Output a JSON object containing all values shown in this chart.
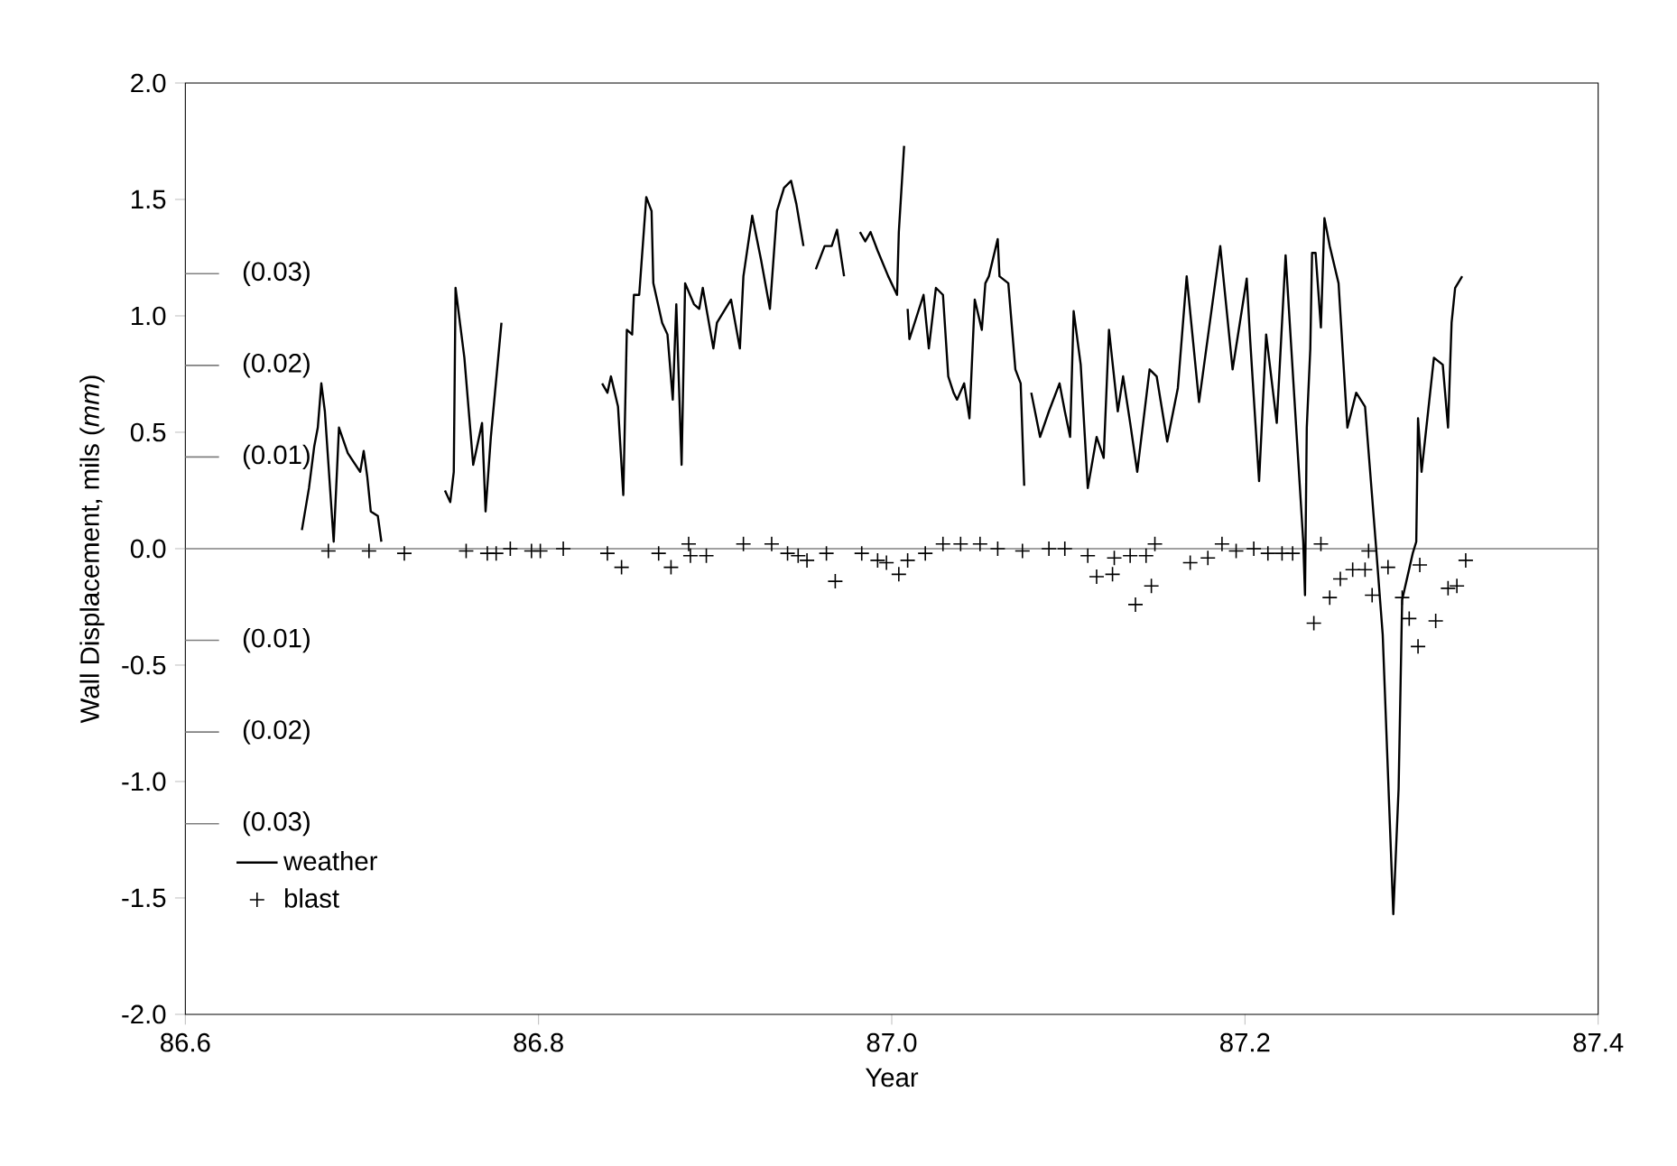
{
  "chart_data": {
    "type": "line",
    "xlabel": "Year",
    "ylabel": "Wall Displacement, mils (*mm*)",
    "xlim": [
      86.6,
      87.4
    ],
    "xticks": [
      86.6,
      86.8,
      {
        "value": 87.0,
        "label": "87.0"
      },
      87.2,
      87.4
    ],
    "ylim": [
      -2.0,
      2.0
    ],
    "yticks": [
      {
        "value": -2.0,
        "label": "-2.0"
      },
      -1.5,
      {
        "value": -1.0,
        "label": "-1.0"
      },
      -0.5,
      {
        "value": 0.0,
        "label": "0.0"
      },
      0.5,
      {
        "value": 1.0,
        "label": "1.0"
      },
      1.5,
      {
        "value": 2.0,
        "label": "2.0"
      }
    ],
    "y2lim": [
      -0.0508,
      0.0508
    ],
    "y2ticks": [
      {
        "value": 0.03,
        "label": "(0.03)"
      },
      {
        "value": 0.02,
        "label": "(0.02)"
      },
      {
        "value": 0.01,
        "label": "(0.01)"
      },
      {
        "value": -0.01,
        "label": "(0.01)"
      },
      {
        "value": -0.02,
        "label": "(0.02)"
      },
      {
        "value": -0.03,
        "label": "(0.03)"
      }
    ],
    "ref_lines": [
      {
        "axis": "y",
        "value": 0,
        "color": "#808080"
      }
    ],
    "legend": "bottom left",
    "grid": false,
    "series": [
      {
        "name": "weather",
        "color": "#000000",
        "marker": "none",
        "x": [
          86.666,
          86.67,
          86.673,
          86.675,
          86.677,
          86.679,
          86.684,
          86.687,
          86.692,
          86.699,
          86.701,
          86.703,
          86.705,
          86.709,
          86.711,
          86.73,
          86.747,
          86.75,
          86.752,
          86.753,
          86.758,
          86.763,
          86.768,
          86.77,
          86.773,
          86.779,
          86.81,
          86.836,
          86.839,
          86.841,
          86.845,
          86.848,
          86.85,
          86.853,
          86.854,
          86.857,
          86.861,
          86.864,
          86.865,
          86.87,
          86.873,
          86.876,
          86.878,
          86.881,
          86.883,
          86.888,
          86.891,
          86.893,
          86.899,
          86.901,
          86.909,
          86.914,
          86.916,
          86.921,
          86.926,
          86.931,
          86.935,
          86.939,
          86.943,
          86.946,
          86.95,
          86.954,
          86.957,
          86.962,
          86.966,
          86.969,
          86.973,
          86.976,
          86.982,
          86.985,
          86.988,
          86.992,
          86.998,
          87.003,
          87.004,
          87.007,
          87.008,
          87.009,
          87.01,
          87.018,
          87.021,
          87.025,
          87.029,
          87.032,
          87.035,
          87.037,
          87.041,
          87.044,
          87.047,
          87.051,
          87.053,
          87.055,
          87.06,
          87.061,
          87.066,
          87.07,
          87.073,
          87.075,
          87.077,
          87.079,
          87.084,
          87.089,
          87.095,
          87.098,
          87.101,
          87.103,
          87.107,
          87.111,
          87.116,
          87.12,
          87.123,
          87.128,
          87.131,
          87.135,
          87.139,
          87.146,
          87.15,
          87.156,
          87.162,
          87.167,
          87.174,
          87.186,
          87.193,
          87.201,
          87.203,
          87.208,
          87.212,
          87.218,
          87.223,
          87.233,
          87.234,
          87.235,
          87.237,
          87.238,
          87.24,
          87.243,
          87.245,
          87.248,
          87.253,
          87.258,
          87.263,
          87.268,
          87.274,
          87.278,
          87.284,
          87.287,
          87.289,
          87.295,
          87.297,
          87.298,
          87.3,
          87.307,
          87.312,
          87.315,
          87.317,
          87.319,
          87.323
        ],
        "values": [
          0.08,
          0.26,
          0.44,
          0.52,
          0.71,
          0.59,
          0.03,
          0.52,
          0.41,
          0.33,
          0.42,
          0.31,
          0.16,
          0.14,
          0.03,
          null,
          0.25,
          0.2,
          0.33,
          1.12,
          0.82,
          0.36,
          0.54,
          0.16,
          0.48,
          0.97,
          null,
          0.71,
          0.67,
          0.74,
          0.61,
          0.23,
          0.94,
          0.92,
          1.09,
          1.09,
          1.51,
          1.45,
          1.14,
          0.97,
          0.92,
          0.64,
          1.05,
          0.36,
          1.14,
          1.05,
          1.03,
          1.12,
          0.86,
          0.97,
          1.07,
          0.86,
          1.17,
          1.43,
          1.24,
          1.03,
          1.45,
          1.55,
          1.58,
          1.48,
          1.3,
          null,
          1.2,
          1.3,
          1.3,
          1.37,
          1.17,
          null,
          1.36,
          1.32,
          1.36,
          1.28,
          1.17,
          1.09,
          1.36,
          1.73,
          null,
          1.03,
          0.9,
          1.09,
          0.86,
          1.12,
          1.09,
          0.74,
          0.67,
          0.64,
          0.71,
          0.56,
          1.07,
          0.94,
          1.14,
          1.17,
          1.33,
          1.17,
          1.14,
          0.77,
          0.71,
          0.27,
          null,
          0.67,
          0.48,
          0.59,
          0.71,
          0.59,
          0.48,
          1.02,
          0.79,
          0.26,
          0.48,
          0.39,
          0.94,
          0.59,
          0.74,
          0.54,
          0.33,
          0.77,
          0.74,
          0.46,
          0.69,
          1.17,
          0.63,
          1.3,
          0.77,
          1.16,
          0.89,
          0.29,
          0.92,
          0.54,
          1.26,
          0.03,
          -0.2,
          0.52,
          0.86,
          1.27,
          1.27,
          0.95,
          1.42,
          1.3,
          1.14,
          0.52,
          0.67,
          0.61,
          0.03,
          -0.37,
          -1.57,
          -1.03,
          -0.22,
          -0.02,
          0.03,
          0.56,
          0.33,
          0.82,
          0.79,
          0.52,
          0.97,
          1.12,
          1.17
        ]
      },
      {
        "name": "blast",
        "type": "scatter",
        "color": "#000000",
        "marker": "cross",
        "x": [
          86.681,
          86.704,
          86.724,
          86.759,
          86.771,
          86.776,
          86.784,
          86.796,
          86.801,
          86.814,
          86.839,
          86.847,
          86.868,
          86.875,
          86.885,
          86.886,
          86.895,
          86.916,
          86.932,
          86.941,
          86.947,
          86.952,
          86.963,
          86.968,
          86.983,
          86.992,
          86.997,
          87.004,
          87.009,
          87.019,
          87.029,
          87.039,
          87.05,
          87.06,
          87.074,
          87.089,
          87.098,
          87.111,
          87.116,
          87.125,
          87.126,
          87.135,
          87.138,
          87.144,
          87.147,
          87.149,
          87.169,
          87.179,
          87.187,
          87.195,
          87.205,
          87.213,
          87.221,
          87.227,
          87.239,
          87.243,
          87.248,
          87.254,
          87.261,
          87.268,
          87.27,
          87.272,
          87.281,
          87.289,
          87.293,
          87.298,
          87.299,
          87.308,
          87.315,
          87.32,
          87.325
        ],
        "values": [
          -0.01,
          -0.01,
          -0.02,
          -0.01,
          -0.02,
          -0.02,
          0.0,
          -0.01,
          -0.01,
          0.0,
          -0.02,
          -0.08,
          -0.02,
          -0.08,
          0.02,
          -0.03,
          -0.03,
          0.02,
          0.02,
          -0.02,
          -0.03,
          -0.05,
          -0.02,
          -0.14,
          -0.02,
          -0.05,
          -0.06,
          -0.11,
          -0.05,
          -0.02,
          0.02,
          0.02,
          0.02,
          0.0,
          -0.01,
          0.0,
          0.0,
          -0.03,
          -0.12,
          -0.11,
          -0.04,
          -0.03,
          -0.24,
          -0.03,
          -0.16,
          0.02,
          -0.06,
          -0.04,
          0.02,
          -0.01,
          0.0,
          -0.02,
          -0.02,
          -0.02,
          -0.32,
          0.02,
          -0.21,
          -0.13,
          -0.09,
          -0.09,
          -0.01,
          -0.2,
          -0.08,
          -0.21,
          -0.3,
          -0.42,
          -0.07,
          -0.31,
          -0.17,
          -0.16,
          -0.05
        ]
      }
    ]
  }
}
